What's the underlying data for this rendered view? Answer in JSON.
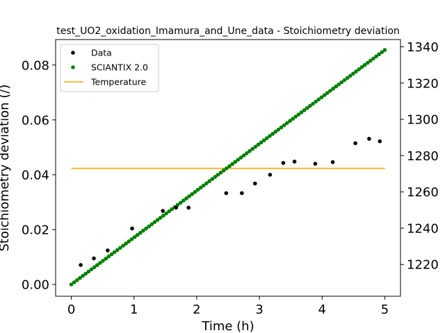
{
  "chart_data": {
    "type": "line",
    "title": "test_UO2_oxidation_Imamura_and_Une_data - Stoichiometry deviation",
    "xlabel": "Time (h)",
    "ylabel": "Stoichiometry deviation (/)",
    "y2label": "",
    "xlim": [
      -0.25,
      5.25
    ],
    "ylim": [
      -0.0043,
      0.0893
    ],
    "y2lim": [
      1202.5,
      1344.0
    ],
    "x_ticks": [
      0,
      1,
      2,
      3,
      4,
      5
    ],
    "x_tick_labels": [
      "0",
      "1",
      "2",
      "3",
      "4",
      "5"
    ],
    "y_ticks": [
      0.0,
      0.02,
      0.04,
      0.06,
      0.08
    ],
    "y_tick_labels": [
      "0.00",
      "0.02",
      "0.04",
      "0.06",
      "0.08"
    ],
    "y2_ticks": [
      1220,
      1240,
      1260,
      1280,
      1300,
      1320,
      1340
    ],
    "y2_tick_labels": [
      "1220",
      "1240",
      "1260",
      "1280",
      "1300",
      "1320",
      "1340"
    ],
    "grid": false,
    "legend_position": "top-left",
    "series": [
      {
        "name": "Data",
        "kind": "scatter",
        "axis": "left",
        "color": "#000000",
        "x": [
          0.15,
          0.36,
          0.58,
          0.97,
          1.46,
          1.67,
          1.87,
          2.47,
          2.72,
          2.93,
          3.17,
          3.38,
          3.56,
          3.89,
          4.17,
          4.53,
          4.75,
          4.92
        ],
        "y": [
          0.0071,
          0.0095,
          0.0124,
          0.0204,
          0.0268,
          0.028,
          0.028,
          0.0333,
          0.0333,
          0.0368,
          0.04,
          0.0443,
          0.0448,
          0.044,
          0.0446,
          0.0515,
          0.0531,
          0.0522
        ]
      },
      {
        "name": "SCIANTIX 2.0",
        "kind": "scatter",
        "axis": "left",
        "color": "#008000",
        "x_start": 0.0,
        "x_end": 5.0,
        "y_start": 0.0,
        "y_end": 0.0855,
        "points": 110
      },
      {
        "name": "Temperature",
        "kind": "line",
        "axis": "right",
        "color": "#ffa500",
        "x": [
          0.0,
          5.0
        ],
        "y": [
          1273.0,
          1273.0
        ]
      }
    ]
  }
}
